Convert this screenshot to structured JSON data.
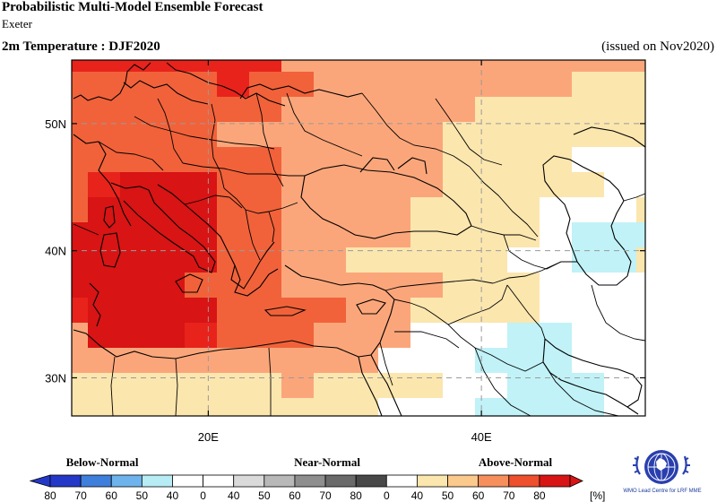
{
  "header": {
    "title": "Probabilistic Multi-Model Ensemble Forecast",
    "center": "Exeter",
    "variable": "2m Temperature : DJF2020",
    "issued": "(issued on Nov2020)"
  },
  "map": {
    "lon_range": [
      10,
      52
    ],
    "lat_range": [
      27,
      55
    ],
    "grid_deg": 2.5,
    "lat_labels": [
      "50N",
      "40N",
      "30N"
    ],
    "lat_label_values": [
      50,
      40,
      30
    ],
    "lon_labels": [
      "20E",
      "40E"
    ],
    "lon_label_values": [
      20,
      40
    ]
  },
  "legend": {
    "categories": [
      "Below-Normal",
      "Near-Normal",
      "Above-Normal"
    ],
    "tick_labels": [
      "80",
      "70",
      "60",
      "50",
      "40",
      "0",
      "40",
      "50",
      "60",
      "70",
      "80",
      "0",
      "40",
      "50",
      "60",
      "70",
      "80"
    ],
    "unit": "[%]",
    "colors": [
      "#2438c8",
      "#3f7fdc",
      "#6fb3ec",
      "#b7ecf5",
      "#ffffff",
      "#ffffff",
      "#dadada",
      "#b8b8b8",
      "#8e8e8e",
      "#6a6a6a",
      "#484848",
      "#ffffff",
      "#fbe6ae",
      "#fbc98c",
      "#f68f5c",
      "#ee4f2c",
      "#d81414"
    ]
  },
  "logo": {
    "caption": "WMO Lead Centre for LRF MME"
  },
  "colors": {
    "an80": "#d81414",
    "an70": "#e8231c",
    "an60": "#f1623a",
    "an50": "#fba67a",
    "an40": "#fbe6ae",
    "bn40": "#c0f2f7",
    "bn50": "#6aaaec",
    "bn60": "#3a78e4",
    "white": "#ffffff"
  }
}
